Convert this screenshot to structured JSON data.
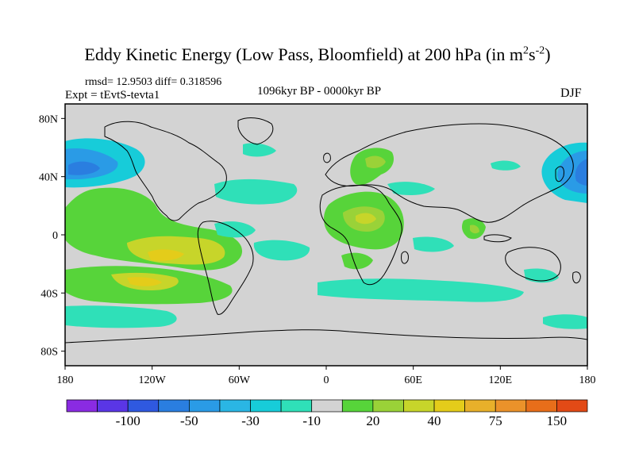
{
  "title": {
    "main": "Eddy Kinetic Energy (Low Pass, Bloomfield) at 200 hPa (in m",
    "unit_sup1": "2",
    "unit_mid": "s",
    "unit_sup2": "-2",
    "unit_close": ")"
  },
  "stats": "rmsd= 12.9503 diff= 0.318596",
  "experiment": "Expt = tEvtS-tevta1",
  "period": "1096kyr BP - 0000kyr BP",
  "season": "DJF",
  "map": {
    "lon_ticks": [
      "180",
      "120W",
      "60W",
      "0",
      "60E",
      "120E",
      "180"
    ],
    "lat_ticks": [
      "80N",
      "40N",
      "0",
      "40S",
      "80S"
    ],
    "land_color": "#000000",
    "background_color": "#d3d3d3"
  },
  "colorbar": {
    "colors": [
      "#8a2be2",
      "#5a36e6",
      "#2f59e0",
      "#2a7ee0",
      "#2a9be6",
      "#2ab6e4",
      "#17ccd9",
      "#2fe0b8",
      "#d3d3d3",
      "#57d43a",
      "#9ad238",
      "#c7d52a",
      "#e4cc1a",
      "#e8b02a",
      "#eb922a",
      "#e86e1a",
      "#e24a16"
    ],
    "labels": [
      "-100",
      "-50",
      "-30",
      "-10",
      "20",
      "40",
      "75",
      "150"
    ]
  },
  "chart_data": {
    "type": "heatmap",
    "variable": "Eddy Kinetic Energy difference (Low Pass, Bloomfield) at 200 hPa",
    "units": "m2 s-2",
    "season": "DJF",
    "period": "1096kyr BP - 0000kyr BP",
    "rmsd": 12.9503,
    "diff": 0.318596,
    "x_range": [
      -180,
      180
    ],
    "y_range": [
      -90,
      90
    ],
    "color_levels": [
      -100,
      -50,
      -30,
      -10,
      20,
      40,
      75,
      150
    ],
    "features": [
      {
        "region": "North Pacific",
        "value_class": "-50 to -30"
      },
      {
        "region": "Tropical/subtropical South Pacific",
        "value_class": "40 to 75"
      },
      {
        "region": "North Africa / Sahara",
        "value_class": "20 to 40"
      },
      {
        "region": "Southern Ocean band 40-50S",
        "value_class": "-10 to -30"
      },
      {
        "region": "Southeast Asia",
        "value_class": "20 to 40"
      }
    ]
  }
}
